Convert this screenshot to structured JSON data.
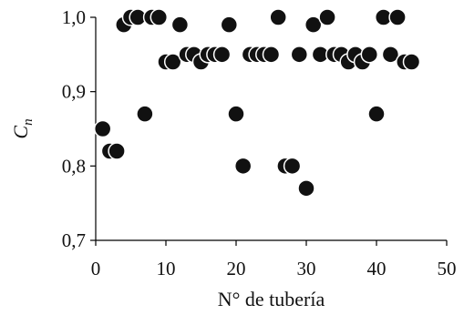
{
  "chart_data": {
    "type": "scatter",
    "xlabel": "N° de tubería",
    "ylabel_main": "C",
    "ylabel_sub": "n",
    "xlim": [
      0,
      50
    ],
    "ylim": [
      0.7,
      1.0
    ],
    "grid": false,
    "x_ticks": [
      {
        "value": 0,
        "label": "0"
      },
      {
        "value": 10,
        "label": "10"
      },
      {
        "value": 20,
        "label": "20"
      },
      {
        "value": 30,
        "label": "30"
      },
      {
        "value": 40,
        "label": "40"
      },
      {
        "value": 50,
        "label": "50"
      }
    ],
    "y_ticks": [
      {
        "value": 0.7,
        "label": "0,7"
      },
      {
        "value": 0.8,
        "label": "0,8"
      },
      {
        "value": 0.9,
        "label": "0,9"
      },
      {
        "value": 1.0,
        "label": "1,0"
      }
    ],
    "series": [
      {
        "points": [
          {
            "x": 1,
            "y": 0.85
          },
          {
            "x": 2,
            "y": 0.82
          },
          {
            "x": 3,
            "y": 0.82
          },
          {
            "x": 4,
            "y": 0.99
          },
          {
            "x": 5,
            "y": 1.0
          },
          {
            "x": 6,
            "y": 1.0
          },
          {
            "x": 7,
            "y": 0.87
          },
          {
            "x": 8,
            "y": 1.0
          },
          {
            "x": 9,
            "y": 1.0
          },
          {
            "x": 10,
            "y": 0.94
          },
          {
            "x": 11,
            "y": 0.94
          },
          {
            "x": 12,
            "y": 0.99
          },
          {
            "x": 13,
            "y": 0.95
          },
          {
            "x": 14,
            "y": 0.95
          },
          {
            "x": 15,
            "y": 0.94
          },
          {
            "x": 16,
            "y": 0.95
          },
          {
            "x": 17,
            "y": 0.95
          },
          {
            "x": 18,
            "y": 0.95
          },
          {
            "x": 19,
            "y": 0.99
          },
          {
            "x": 20,
            "y": 0.87
          },
          {
            "x": 21,
            "y": 0.8
          },
          {
            "x": 22,
            "y": 0.95
          },
          {
            "x": 23,
            "y": 0.95
          },
          {
            "x": 24,
            "y": 0.95
          },
          {
            "x": 25,
            "y": 0.95
          },
          {
            "x": 26,
            "y": 1.0
          },
          {
            "x": 27,
            "y": 0.8
          },
          {
            "x": 28,
            "y": 0.8
          },
          {
            "x": 29,
            "y": 0.95
          },
          {
            "x": 30,
            "y": 0.77
          },
          {
            "x": 31,
            "y": 0.99
          },
          {
            "x": 32,
            "y": 0.95
          },
          {
            "x": 33,
            "y": 1.0
          },
          {
            "x": 34,
            "y": 0.95
          },
          {
            "x": 35,
            "y": 0.95
          },
          {
            "x": 36,
            "y": 0.94
          },
          {
            "x": 37,
            "y": 0.95
          },
          {
            "x": 38,
            "y": 0.94
          },
          {
            "x": 39,
            "y": 0.95
          },
          {
            "x": 40,
            "y": 0.87
          },
          {
            "x": 41,
            "y": 1.0
          },
          {
            "x": 42,
            "y": 0.95
          },
          {
            "x": 43,
            "y": 1.0
          },
          {
            "x": 44,
            "y": 0.94
          },
          {
            "x": 45,
            "y": 0.94
          }
        ]
      }
    ],
    "colors": {
      "marker_fill": "#111111",
      "marker_edge": "#ffffff",
      "axis": "#000000"
    }
  }
}
